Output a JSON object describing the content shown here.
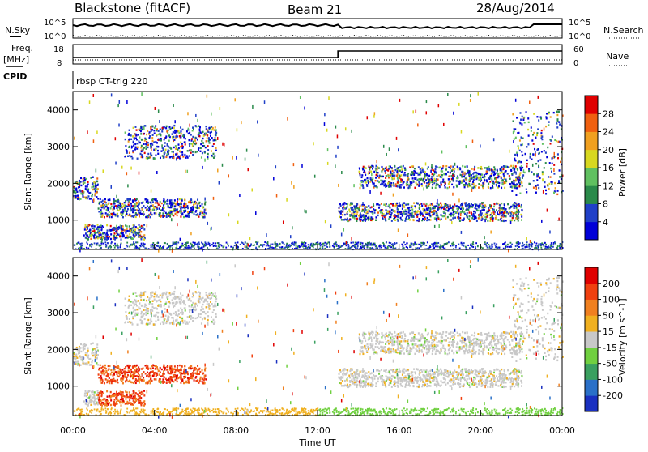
{
  "header": {
    "station": "Blackstone (fitACF)",
    "beam": "Beam 21",
    "date": "28/Aug/2014"
  },
  "summary": {
    "nsky_label": "N.Sky",
    "nsky_ticks": [
      "10^5",
      "10^0"
    ],
    "nsearch_label": "N.Search",
    "nsearch_ticks": [
      "10^5",
      "10^0"
    ],
    "freq_label": "Freq.",
    "freq_unit": "[MHz]",
    "freq_ticks": [
      "18",
      "8"
    ],
    "nave_label": "Nave",
    "nave_ticks": [
      "60",
      "0"
    ],
    "cpid_label": "CPID",
    "cpid_text": "rbsp CT-trig 220"
  },
  "chart_data": [
    {
      "type": "heatmap",
      "panel": "power",
      "ylabel": "Slant Range [km]",
      "yticks": [
        1000,
        2000,
        3000,
        4000
      ],
      "ylim": [
        200,
        4500
      ],
      "xlim_hours": [
        0,
        24
      ],
      "colorbar": {
        "label": "Power [dB]",
        "ticks": [
          "4",
          "8",
          "12",
          "16",
          "20",
          "24",
          "28"
        ],
        "colors": [
          "#0000d8",
          "#2040c8",
          "#2a8a4a",
          "#60c060",
          "#d8d820",
          "#f0a020",
          "#f06010",
          "#e00000"
        ]
      },
      "echo_bands": [
        {
          "t": [
            0,
            1.2
          ],
          "range_km": [
            1600,
            2200
          ]
        },
        {
          "t": [
            1.2,
            6.5
          ],
          "range_km": [
            1100,
            1600
          ]
        },
        {
          "t": [
            2.5,
            7
          ],
          "range_km": [
            2700,
            3600
          ]
        },
        {
          "t": [
            0.5,
            3.5
          ],
          "range_km": [
            500,
            900
          ]
        },
        {
          "t": [
            14,
            22
          ],
          "range_km": [
            1900,
            2500
          ]
        },
        {
          "t": [
            13,
            22
          ],
          "range_km": [
            1000,
            1500
          ]
        },
        {
          "t": [
            21.5,
            24
          ],
          "range_km": [
            1700,
            4000
          ]
        }
      ]
    },
    {
      "type": "heatmap",
      "panel": "velocity",
      "ylabel": "Slant Range [km]",
      "yticks": [
        1000,
        2000,
        3000,
        4000
      ],
      "ylim": [
        200,
        4500
      ],
      "xlim_hours": [
        0,
        24
      ],
      "xlabel": "Time UT",
      "xticks": [
        "00:00",
        "04:00",
        "08:00",
        "12:00",
        "16:00",
        "20:00",
        "00:00"
      ],
      "colorbar": {
        "label": "Velocity [m s^-1]",
        "ticks": [
          "200",
          "100",
          "50",
          "15",
          "-15",
          "-50",
          "-100",
          "-200"
        ],
        "colors": [
          "#1a30c0",
          "#2a70c8",
          "#3aa060",
          "#70d040",
          "#c8c8c8",
          "#f0b020",
          "#f08020",
          "#f04010",
          "#e00000"
        ]
      }
    }
  ]
}
